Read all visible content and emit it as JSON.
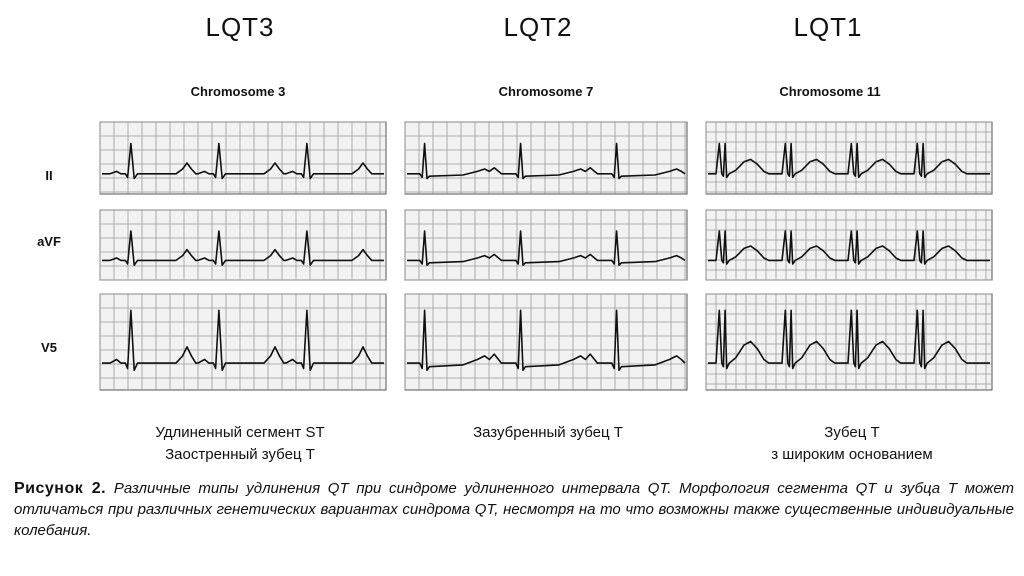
{
  "columns": [
    {
      "type": "LQT3",
      "chromosome": "Chromosome 3",
      "description": [
        "Удлиненный сегмент ST",
        "Заостренный зубец T"
      ]
    },
    {
      "type": "LQT2",
      "chromosome": "Chromosome 7",
      "description": [
        "Зазубренный зубец T",
        ""
      ]
    },
    {
      "type": "LQT1",
      "chromosome": "Chromosome 11",
      "description": [
        "Зубец T",
        "з широким основанием"
      ]
    }
  ],
  "leads": [
    "II",
    "aVF",
    "V5"
  ],
  "caption": {
    "label": "Рисунок 2.",
    "text": "Различные типы удлинения QT при синдроме удлиненного интервала QT. Морфология сегмента QT и зубца T может отличаться при различных генетических вариантах синдрома QT, несмотря на то что возможны также существенные индивидуальные колебания."
  },
  "colors": {
    "grid": "#9a9a9a",
    "trace": "#111111",
    "panel_bg": "#f2f2f2"
  }
}
